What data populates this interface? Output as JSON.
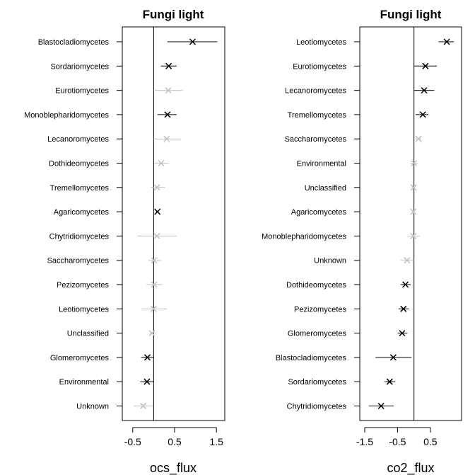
{
  "chart_data": [
    {
      "type": "forest",
      "title": "Fungi light",
      "xlabel": "ocs_flux",
      "xlim": [
        -0.75,
        1.7
      ],
      "xticks": [
        -0.5,
        0.5,
        1.5
      ],
      "xtick_labels": [
        "-0.5",
        "0.5",
        "1.5"
      ],
      "reference_line": 0,
      "colors": {
        "significant": "#000000",
        "nonsignificant": "#c0c0c0"
      },
      "rows": [
        {
          "label": "Blastocladiomycetes",
          "estimate": 0.93,
          "lower": 0.33,
          "upper": 1.52,
          "significant": true
        },
        {
          "label": "Sordariomycetes",
          "estimate": 0.36,
          "lower": 0.17,
          "upper": 0.55,
          "significant": true
        },
        {
          "label": "Eurotiomycetes",
          "estimate": 0.35,
          "lower": 0.0,
          "upper": 0.7,
          "significant": false
        },
        {
          "label": "Monoblepharidomycetes",
          "estimate": 0.33,
          "lower": 0.09,
          "upper": 0.55,
          "significant": true
        },
        {
          "label": "Lecanoromycetes",
          "estimate": 0.31,
          "lower": 0.0,
          "upper": 0.66,
          "significant": false
        },
        {
          "label": "Dothideomycetes",
          "estimate": 0.18,
          "lower": 0.01,
          "upper": 0.35,
          "significant": false
        },
        {
          "label": "Tremellomycetes",
          "estimate": 0.08,
          "lower": -0.07,
          "upper": 0.27,
          "significant": false
        },
        {
          "label": "Agaricomycetes",
          "estimate": 0.09,
          "lower": 0.06,
          "upper": 0.12,
          "significant": true
        },
        {
          "label": "Chytridiomycetes",
          "estimate": 0.08,
          "lower": -0.38,
          "upper": 0.55,
          "significant": false
        },
        {
          "label": "Saccharomycetes",
          "estimate": 0.01,
          "lower": -0.12,
          "upper": 0.17,
          "significant": false
        },
        {
          "label": "Pezizomycetes",
          "estimate": 0.01,
          "lower": -0.17,
          "upper": 0.21,
          "significant": false
        },
        {
          "label": "Leotiomycetes",
          "estimate": 0.0,
          "lower": -0.3,
          "upper": 0.31,
          "significant": false
        },
        {
          "label": "Unclassified",
          "estimate": -0.04,
          "lower": -0.1,
          "upper": 0.04,
          "significant": false
        },
        {
          "label": "Glomeromycetes",
          "estimate": -0.15,
          "lower": -0.3,
          "upper": 0.0,
          "significant": true
        },
        {
          "label": "Environmental",
          "estimate": -0.16,
          "lower": -0.32,
          "upper": 0.0,
          "significant": true
        },
        {
          "label": "Unknown",
          "estimate": -0.25,
          "lower": -0.47,
          "upper": -0.01,
          "significant": false
        }
      ]
    },
    {
      "type": "forest",
      "title": "Fungi light",
      "xlabel": "co2_flux",
      "xlim": [
        -1.65,
        1.45
      ],
      "xticks": [
        -1.5,
        -0.5,
        0.5
      ],
      "xtick_labels": [
        "-1.5",
        "-0.5",
        "0.5"
      ],
      "reference_line": 0,
      "colors": {
        "significant": "#000000",
        "nonsignificant": "#c0c0c0"
      },
      "rows": [
        {
          "label": "Leotiomycetes",
          "estimate": 1.0,
          "lower": 0.75,
          "upper": 1.22,
          "significant": true
        },
        {
          "label": "Eurotiomycetes",
          "estimate": 0.35,
          "lower": 0.0,
          "upper": 0.7,
          "significant": true
        },
        {
          "label": "Lecanoromycetes",
          "estimate": 0.31,
          "lower": 0.0,
          "upper": 0.62,
          "significant": true
        },
        {
          "label": "Tremellomycetes",
          "estimate": 0.27,
          "lower": 0.05,
          "upper": 0.44,
          "significant": true
        },
        {
          "label": "Saccharomycetes",
          "estimate": 0.14,
          "lower": 0.05,
          "upper": 0.22,
          "significant": false
        },
        {
          "label": "Environmental",
          "estimate": 0.0,
          "lower": -0.1,
          "upper": 0.1,
          "significant": false
        },
        {
          "label": "Unclassified",
          "estimate": -0.01,
          "lower": -0.06,
          "upper": 0.04,
          "significant": false
        },
        {
          "label": "Agaricomycetes",
          "estimate": -0.02,
          "lower": -0.05,
          "upper": 0.01,
          "significant": false
        },
        {
          "label": "Monoblepharidomycetes",
          "estimate": -0.02,
          "lower": -0.2,
          "upper": 0.18,
          "significant": false
        },
        {
          "label": "Unknown",
          "estimate": -0.21,
          "lower": -0.41,
          "upper": 0.0,
          "significant": false
        },
        {
          "label": "Dothideomycetes",
          "estimate": -0.26,
          "lower": -0.41,
          "upper": -0.1,
          "significant": true
        },
        {
          "label": "Pezizomycetes",
          "estimate": -0.32,
          "lower": -0.47,
          "upper": -0.15,
          "significant": true
        },
        {
          "label": "Glomeromycetes",
          "estimate": -0.36,
          "lower": -0.5,
          "upper": -0.2,
          "significant": true
        },
        {
          "label": "Blastocladiomycetes",
          "estimate": -0.63,
          "lower": -1.17,
          "upper": -0.08,
          "significant": true
        },
        {
          "label": "Sordariomycetes",
          "estimate": -0.74,
          "lower": -0.9,
          "upper": -0.57,
          "significant": true
        },
        {
          "label": "Chytridiomycetes",
          "estimate": -1.0,
          "lower": -1.37,
          "upper": -0.62,
          "significant": true
        }
      ]
    }
  ]
}
